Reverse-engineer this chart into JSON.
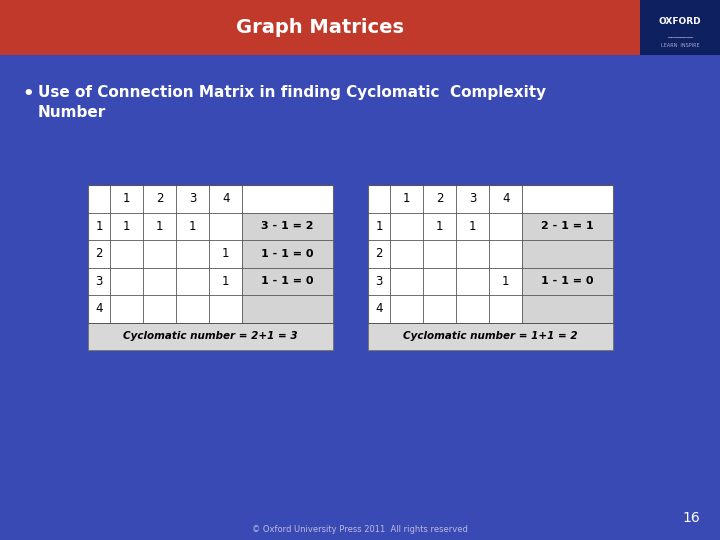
{
  "title": "Graph Matrices",
  "title_color": "#ffffff",
  "title_bg_color": "#c0392b",
  "slide_bg_color": "#3a4ab5",
  "bullet_text_line1": "Use of Connection Matrix in finding Cyclomatic  Complexity",
  "bullet_text_line2": "Number",
  "bullet_color": "#ffffff",
  "page_number": "16",
  "footer_text": "© Oxford University Press 2011  All rights reserved",
  "oxford_box_color": "#0f2060",
  "table1": {
    "col_headers": [
      "1",
      "2",
      "3",
      "4"
    ],
    "row_headers": [
      "1",
      "2",
      "3",
      "4"
    ],
    "cells": [
      [
        "1",
        "1",
        "1",
        ""
      ],
      [
        "",
        "",
        "",
        "1"
      ],
      [
        "",
        "",
        "",
        "1"
      ],
      [
        "",
        "",
        "",
        ""
      ]
    ],
    "row_results": [
      "3 - 1 = 2",
      "1 - 1 = 0",
      "1 - 1 = 0",
      ""
    ],
    "footer": "Cyclomatic number = 2+1 = 3"
  },
  "table2": {
    "col_headers": [
      "1",
      "2",
      "3",
      "4"
    ],
    "row_headers": [
      "1",
      "2",
      "3",
      "4"
    ],
    "cells": [
      [
        "",
        "1",
        "1",
        ""
      ],
      [
        "",
        "",
        "",
        ""
      ],
      [
        "",
        "",
        "",
        "1"
      ],
      [
        "",
        "",
        "",
        ""
      ]
    ],
    "row_results": [
      "2 - 1 = 1",
      "",
      "1 - 1 = 0",
      ""
    ],
    "footer": "Cyclomatic number = 1+1 = 2"
  }
}
